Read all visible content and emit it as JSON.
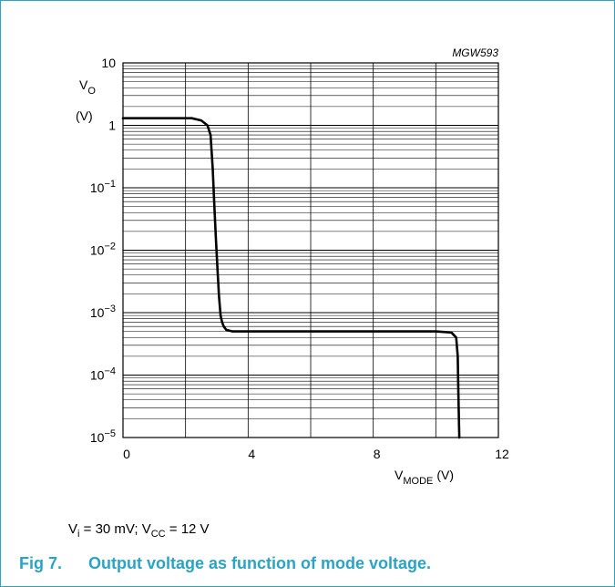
{
  "figure": {
    "reference_code": "MGW593",
    "caption_number": "Fig 7.",
    "caption_text": "Output voltage as function of mode voltage.",
    "conditions": {
      "vi_symbol": "V",
      "vi_sub": "i",
      "vi_value": " = 30 mV; ",
      "vcc_symbol": "V",
      "vcc_sub": "CC",
      "vcc_value": " = 12 V"
    },
    "accent_color": "#2ba3c4"
  },
  "chart_data": {
    "type": "line",
    "title": "",
    "xlabel": {
      "symbol": "V",
      "sub": "MODE",
      "unit": "(V)"
    },
    "ylabel": {
      "symbol": "V",
      "sub": "O",
      "unit": "(V)"
    },
    "xlim": [
      0,
      12
    ],
    "ylim": [
      1e-05,
      10
    ],
    "y_scale": "log",
    "grid": true,
    "x_ticks": [
      {
        "value": 0,
        "label": "0"
      },
      {
        "value": 4,
        "label": "4"
      },
      {
        "value": 8,
        "label": "8"
      },
      {
        "value": 12,
        "label": "12"
      }
    ],
    "y_ticks": [
      {
        "value": 10,
        "base": "10",
        "exp": ""
      },
      {
        "value": 1,
        "base": "1",
        "exp": ""
      },
      {
        "value": 0.1,
        "base": "10",
        "exp": "−1"
      },
      {
        "value": 0.01,
        "base": "10",
        "exp": "−2"
      },
      {
        "value": 0.001,
        "base": "10",
        "exp": "−3"
      },
      {
        "value": 0.0001,
        "base": "10",
        "exp": "−4"
      },
      {
        "value": 1e-05,
        "base": "10",
        "exp": "−5"
      }
    ],
    "series": [
      {
        "x": [
          0,
          1.5,
          2.2,
          2.5,
          2.7,
          2.8,
          2.87,
          2.92,
          2.97,
          3.02,
          3.07,
          3.12,
          3.17,
          3.22,
          3.3,
          3.5,
          4.0,
          6.0,
          8.0,
          10.0,
          10.5,
          10.65,
          10.7,
          10.72,
          10.75
        ],
        "y": [
          1.3,
          1.3,
          1.3,
          1.2,
          1.0,
          0.7,
          0.2,
          0.05,
          0.015,
          0.005,
          0.0018,
          0.0009,
          0.0007,
          0.0006,
          0.00053,
          0.0005,
          0.0005,
          0.0005,
          0.0005,
          0.0005,
          0.00048,
          0.0004,
          0.0002,
          5e-05,
          1e-05
        ]
      }
    ]
  }
}
